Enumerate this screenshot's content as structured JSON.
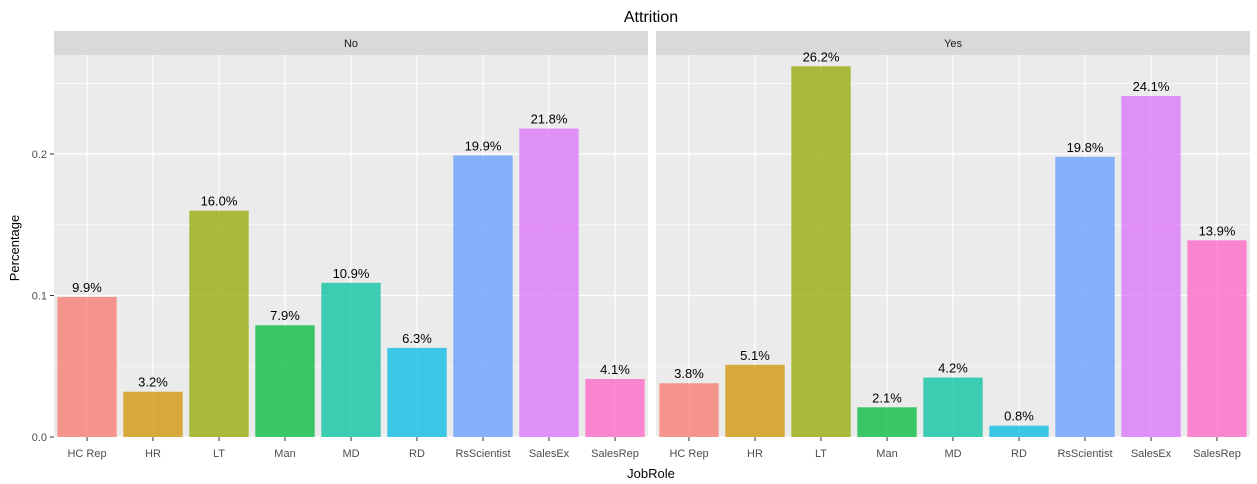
{
  "chart_data": {
    "type": "bar",
    "title": "Attrition",
    "xlabel": "JobRole",
    "ylabel": "Percentage",
    "ylim": [
      0,
      0.27
    ],
    "yticks": [
      0.0,
      0.1,
      0.2
    ],
    "ytick_labels": [
      "0.0",
      "0.1",
      "0.2"
    ],
    "grid": true,
    "categories": [
      "HC Rep",
      "HR",
      "LT",
      "Man",
      "MD",
      "RD",
      "RsScientist",
      "SalesEx",
      "SalesRep"
    ],
    "colors": [
      "#F8766D",
      "#D39200",
      "#93AA00",
      "#00BA38",
      "#00C19F",
      "#00B9E3",
      "#619CFF",
      "#DB72FB",
      "#FF61C3"
    ],
    "panels": [
      {
        "name": "No",
        "values": [
          0.099,
          0.032,
          0.16,
          0.079,
          0.109,
          0.063,
          0.199,
          0.218,
          0.041
        ],
        "labels": [
          "9.9%",
          "3.2%",
          "16.0%",
          "7.9%",
          "10.9%",
          "6.3%",
          "19.9%",
          "21.8%",
          "4.1%"
        ]
      },
      {
        "name": "Yes",
        "values": [
          0.038,
          0.051,
          0.262,
          0.021,
          0.042,
          0.008,
          0.198,
          0.241,
          0.139
        ],
        "labels": [
          "3.8%",
          "5.1%",
          "26.2%",
          "2.1%",
          "4.2%",
          "0.8%",
          "19.8%",
          "24.1%",
          "13.9%"
        ]
      }
    ]
  }
}
